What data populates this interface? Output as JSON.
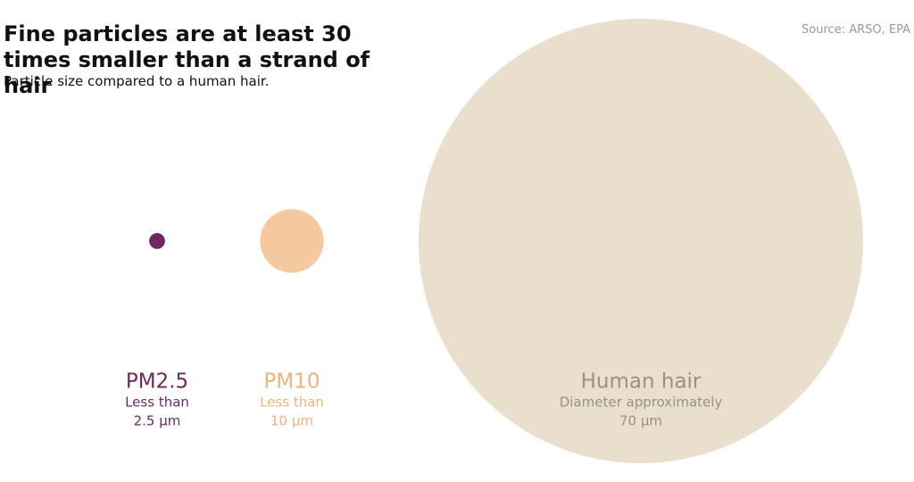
{
  "chart_data": {
    "type": "bubble",
    "title": "Fine particles are at least 30 times smaller than a strand of hair",
    "subtitle": "Particle size compared to a human hair.",
    "source": "Source: ARSO, EPA",
    "categories": [
      "PM2.5",
      "PM10",
      "Human hair"
    ],
    "descriptions": [
      "Less than",
      "Less than",
      "Diameter approximately"
    ],
    "values": [
      2.5,
      10,
      70
    ],
    "value_labels": [
      "2.5 µm",
      "10 µm",
      "70 µm"
    ],
    "colors": [
      "#6e2a5e",
      "#f4c9a0",
      "#e9dfcc"
    ],
    "label_colors": [
      "#6e2a5e",
      "#f0b27a",
      "#9a9088"
    ]
  }
}
